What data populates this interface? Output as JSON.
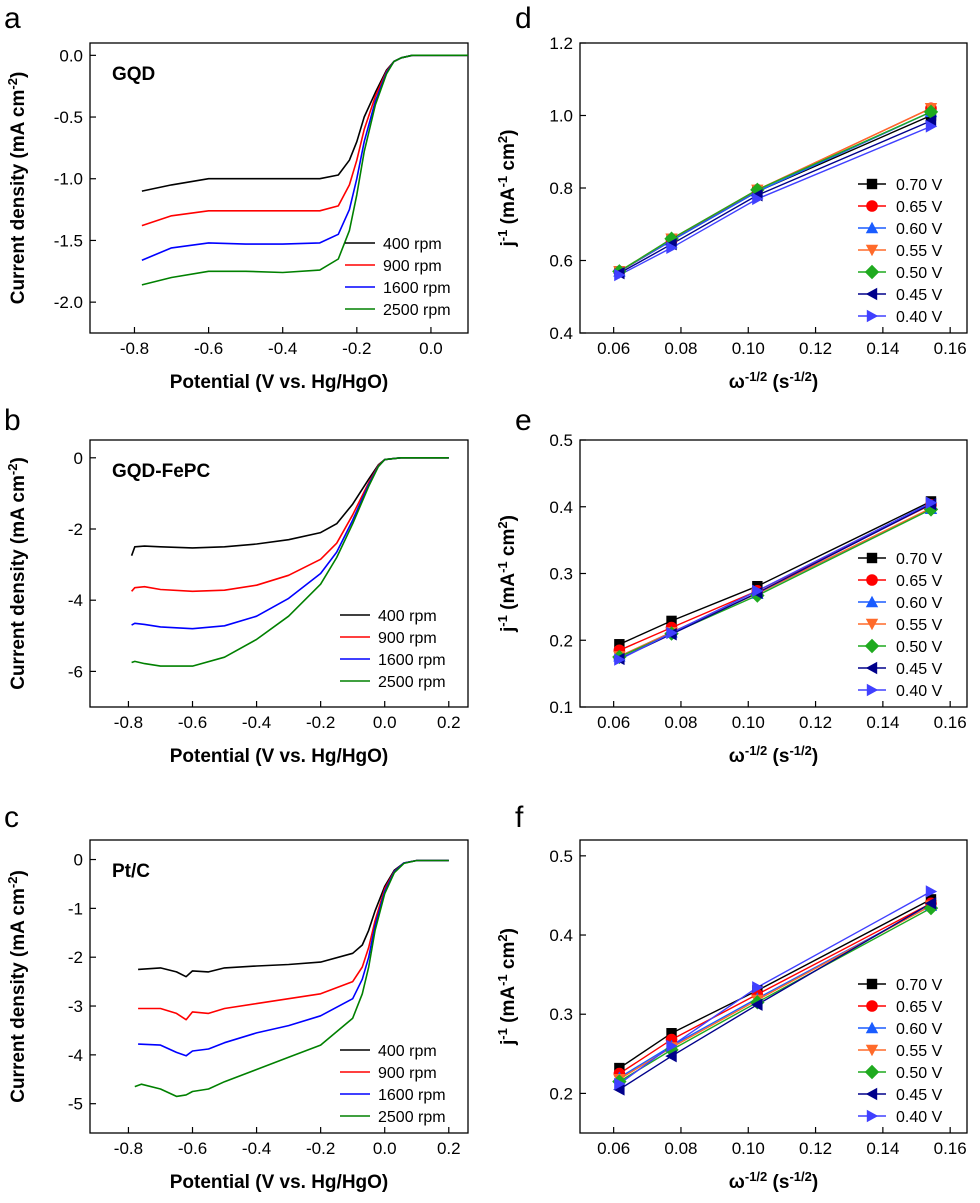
{
  "colors": {
    "rpm_400": "#000000",
    "rpm_900": "#ff0000",
    "rpm_1600": "#0000ff",
    "rpm_2500": "#008000",
    "v070": "#000000",
    "v065": "#ff0000",
    "v060": "#1a5cff",
    "v055": "#ff6a2a",
    "v050": "#1faa1f",
    "v045": "#00008b",
    "v040": "#4040ff"
  },
  "chart_data": [
    {
      "panel": "a",
      "type": "line",
      "inset_label": "GQD",
      "xlabel": "Potential (V vs. Hg/HgO)",
      "ylabel": "Current density (mA cm-2)",
      "xlim": [
        -0.92,
        0.1
      ],
      "ylim": [
        -2.25,
        0.1
      ],
      "xticks": [
        -0.8,
        -0.6,
        -0.4,
        -0.2,
        0.0
      ],
      "xtick_labels": [
        "-0.8",
        "-0.6",
        "-0.4",
        "-0.2",
        "0.0"
      ],
      "yticks": [
        0.0,
        -0.5,
        -1.0,
        -1.5,
        -2.0
      ],
      "ytick_labels": [
        "0.0",
        "-0.5",
        "-1.0",
        "-1.5",
        "-2.0"
      ],
      "legend_position": "bottom-right",
      "series": [
        {
          "name": "400 rpm",
          "color_key": "rpm_400",
          "x": [
            -0.78,
            -0.7,
            -0.6,
            -0.5,
            -0.4,
            -0.3,
            -0.25,
            -0.22,
            -0.2,
            -0.18,
            -0.15,
            -0.12,
            -0.1,
            -0.08,
            -0.05,
            0.0,
            0.1
          ],
          "y": [
            -1.1,
            -1.05,
            -1.0,
            -1.0,
            -1.0,
            -1.0,
            -0.97,
            -0.85,
            -0.7,
            -0.5,
            -0.3,
            -0.12,
            -0.05,
            -0.02,
            0,
            0,
            0
          ]
        },
        {
          "name": "900 rpm",
          "color_key": "rpm_900",
          "x": [
            -0.78,
            -0.7,
            -0.6,
            -0.5,
            -0.4,
            -0.3,
            -0.25,
            -0.22,
            -0.2,
            -0.18,
            -0.15,
            -0.12,
            -0.1,
            -0.08,
            -0.05,
            0.0,
            0.1
          ],
          "y": [
            -1.38,
            -1.3,
            -1.26,
            -1.26,
            -1.26,
            -1.26,
            -1.22,
            -1.05,
            -0.85,
            -0.6,
            -0.33,
            -0.13,
            -0.05,
            -0.02,
            0,
            0,
            0
          ]
        },
        {
          "name": "1600 rpm",
          "color_key": "rpm_1600",
          "x": [
            -0.78,
            -0.7,
            -0.6,
            -0.5,
            -0.4,
            -0.3,
            -0.25,
            -0.22,
            -0.2,
            -0.18,
            -0.15,
            -0.12,
            -0.1,
            -0.08,
            -0.05,
            0.0,
            0.1
          ],
          "y": [
            -1.66,
            -1.56,
            -1.52,
            -1.53,
            -1.53,
            -1.52,
            -1.45,
            -1.25,
            -1.0,
            -0.7,
            -0.37,
            -0.14,
            -0.05,
            -0.02,
            0,
            0,
            0
          ]
        },
        {
          "name": "2500 rpm",
          "color_key": "rpm_2500",
          "x": [
            -0.78,
            -0.7,
            -0.6,
            -0.5,
            -0.4,
            -0.3,
            -0.25,
            -0.22,
            -0.2,
            -0.18,
            -0.15,
            -0.12,
            -0.1,
            -0.08,
            -0.05,
            0.0,
            0.1
          ],
          "y": [
            -1.86,
            -1.8,
            -1.75,
            -1.75,
            -1.76,
            -1.74,
            -1.65,
            -1.42,
            -1.13,
            -0.78,
            -0.4,
            -0.15,
            -0.05,
            -0.02,
            0,
            0,
            0
          ]
        }
      ]
    },
    {
      "panel": "b",
      "type": "line",
      "inset_label": "GQD-FePC",
      "xlabel": "Potential (V vs. Hg/HgO)",
      "ylabel": "Current density (mA cm-2)",
      "xlim": [
        -0.92,
        0.26
      ],
      "ylim": [
        -7.0,
        0.5
      ],
      "xticks": [
        -0.8,
        -0.6,
        -0.4,
        -0.2,
        0.0,
        0.2
      ],
      "xtick_labels": [
        "-0.8",
        "-0.6",
        "-0.4",
        "-0.2",
        "0.0",
        "0.2"
      ],
      "yticks": [
        0,
        -2,
        -4,
        -6
      ],
      "ytick_labels": [
        "0",
        "-2",
        "-4",
        "-6"
      ],
      "legend_position": "bottom-right",
      "series": [
        {
          "name": "400 rpm",
          "color_key": "rpm_400",
          "x": [
            -0.79,
            -0.78,
            -0.75,
            -0.7,
            -0.6,
            -0.5,
            -0.4,
            -0.3,
            -0.2,
            -0.15,
            -0.1,
            -0.05,
            -0.02,
            0.0,
            0.05,
            0.2
          ],
          "y": [
            -2.75,
            -2.5,
            -2.48,
            -2.5,
            -2.53,
            -2.5,
            -2.42,
            -2.3,
            -2.1,
            -1.85,
            -1.3,
            -0.6,
            -0.2,
            -0.05,
            0,
            0
          ]
        },
        {
          "name": "900 rpm",
          "color_key": "rpm_900",
          "x": [
            -0.79,
            -0.78,
            -0.75,
            -0.7,
            -0.6,
            -0.5,
            -0.4,
            -0.3,
            -0.2,
            -0.15,
            -0.1,
            -0.05,
            -0.02,
            0.0,
            0.05,
            0.2
          ],
          "y": [
            -3.75,
            -3.65,
            -3.62,
            -3.7,
            -3.75,
            -3.72,
            -3.58,
            -3.3,
            -2.85,
            -2.4,
            -1.6,
            -0.7,
            -0.22,
            -0.05,
            0,
            0
          ]
        },
        {
          "name": "1600 rpm",
          "color_key": "rpm_1600",
          "x": [
            -0.79,
            -0.78,
            -0.75,
            -0.7,
            -0.6,
            -0.5,
            -0.4,
            -0.3,
            -0.2,
            -0.15,
            -0.1,
            -0.05,
            -0.02,
            0.0,
            0.05,
            0.2
          ],
          "y": [
            -4.7,
            -4.65,
            -4.68,
            -4.75,
            -4.8,
            -4.72,
            -4.45,
            -3.95,
            -3.25,
            -2.65,
            -1.75,
            -0.75,
            -0.24,
            -0.05,
            0,
            0
          ]
        },
        {
          "name": "2500 rpm",
          "color_key": "rpm_2500",
          "x": [
            -0.79,
            -0.78,
            -0.75,
            -0.7,
            -0.6,
            -0.5,
            -0.4,
            -0.3,
            -0.2,
            -0.15,
            -0.1,
            -0.05,
            -0.02,
            0.0,
            0.05,
            0.2
          ],
          "y": [
            -5.75,
            -5.72,
            -5.78,
            -5.85,
            -5.85,
            -5.6,
            -5.1,
            -4.45,
            -3.55,
            -2.8,
            -1.85,
            -0.8,
            -0.25,
            -0.05,
            0,
            0
          ]
        }
      ]
    },
    {
      "panel": "c",
      "type": "line",
      "inset_label": "Pt/C",
      "xlabel": "Potential (V vs. Hg/HgO)",
      "ylabel": "Current density (mA cm-2)",
      "xlim": [
        -0.92,
        0.26
      ],
      "ylim": [
        -5.6,
        0.4
      ],
      "xticks": [
        -0.8,
        -0.6,
        -0.4,
        -0.2,
        0.0,
        0.2
      ],
      "xtick_labels": [
        "-0.8",
        "-0.6",
        "-0.4",
        "-0.2",
        "0.0",
        "0.2"
      ],
      "yticks": [
        0,
        -1,
        -2,
        -3,
        -4,
        -5
      ],
      "ytick_labels": [
        "0",
        "-1",
        "-2",
        "-3",
        "-4",
        "-5"
      ],
      "legend_position": "bottom-right",
      "series": [
        {
          "name": "400 rpm",
          "color_key": "rpm_400",
          "x": [
            -0.77,
            -0.7,
            -0.65,
            -0.62,
            -0.6,
            -0.55,
            -0.5,
            -0.4,
            -0.3,
            -0.2,
            -0.1,
            -0.07,
            -0.05,
            -0.03,
            0.0,
            0.03,
            0.06,
            0.1,
            0.2
          ],
          "y": [
            -2.25,
            -2.22,
            -2.3,
            -2.4,
            -2.28,
            -2.3,
            -2.22,
            -2.18,
            -2.15,
            -2.1,
            -1.92,
            -1.75,
            -1.45,
            -1.05,
            -0.55,
            -0.22,
            -0.07,
            -0.02,
            -0.02
          ]
        },
        {
          "name": "900 rpm",
          "color_key": "rpm_900",
          "x": [
            -0.77,
            -0.7,
            -0.65,
            -0.62,
            -0.6,
            -0.55,
            -0.5,
            -0.4,
            -0.3,
            -0.2,
            -0.1,
            -0.07,
            -0.05,
            -0.03,
            0.0,
            0.03,
            0.06,
            0.1,
            0.2
          ],
          "y": [
            -3.05,
            -3.05,
            -3.15,
            -3.28,
            -3.12,
            -3.15,
            -3.05,
            -2.95,
            -2.85,
            -2.75,
            -2.5,
            -2.2,
            -1.8,
            -1.25,
            -0.6,
            -0.24,
            -0.07,
            -0.02,
            -0.02
          ]
        },
        {
          "name": "1600 rpm",
          "color_key": "rpm_1600",
          "x": [
            -0.77,
            -0.7,
            -0.65,
            -0.62,
            -0.6,
            -0.55,
            -0.5,
            -0.4,
            -0.3,
            -0.2,
            -0.1,
            -0.07,
            -0.05,
            -0.03,
            0.0,
            0.03,
            0.06,
            0.1,
            0.2
          ],
          "y": [
            -3.78,
            -3.8,
            -3.95,
            -4.02,
            -3.92,
            -3.88,
            -3.75,
            -3.55,
            -3.4,
            -3.2,
            -2.85,
            -2.45,
            -2.0,
            -1.35,
            -0.65,
            -0.25,
            -0.07,
            -0.02,
            -0.02
          ]
        },
        {
          "name": "2500 rpm",
          "color_key": "rpm_2500",
          "x": [
            -0.78,
            -0.76,
            -0.7,
            -0.65,
            -0.62,
            -0.6,
            -0.55,
            -0.5,
            -0.4,
            -0.3,
            -0.2,
            -0.1,
            -0.07,
            -0.05,
            -0.03,
            0.0,
            0.03,
            0.06,
            0.1,
            0.2
          ],
          "y": [
            -4.65,
            -4.6,
            -4.7,
            -4.85,
            -4.82,
            -4.75,
            -4.7,
            -4.55,
            -4.3,
            -4.05,
            -3.8,
            -3.25,
            -2.75,
            -2.2,
            -1.45,
            -0.7,
            -0.27,
            -0.08,
            -0.02,
            -0.02
          ]
        }
      ]
    },
    {
      "panel": "d",
      "type": "line",
      "xlabel": "ω-1/2 (s-1/2)",
      "ylabel": "j-1 (mA-1 cm2)",
      "xlim": [
        0.05,
        0.165
      ],
      "ylim": [
        0.4,
        1.2
      ],
      "xticks": [
        0.06,
        0.08,
        0.1,
        0.12,
        0.14,
        0.16
      ],
      "xtick_labels": [
        "0.06",
        "0.08",
        "0.10",
        "0.12",
        "0.14",
        "0.16"
      ],
      "yticks": [
        0.4,
        0.6,
        0.8,
        1.0,
        1.2
      ],
      "ytick_labels": [
        "0.4",
        "0.6",
        "0.8",
        "1.0",
        "1.2"
      ],
      "legend_position": "right",
      "x": [
        0.0617,
        0.0772,
        0.1027,
        0.1543
      ],
      "series": [
        {
          "name": "0.70 V",
          "marker": "square",
          "color_key": "v070",
          "values": [
            0.57,
            0.655,
            0.79,
            1.0
          ]
        },
        {
          "name": "0.65 V",
          "marker": "circle",
          "color_key": "v065",
          "values": [
            0.57,
            0.655,
            0.795,
            1.02
          ]
        },
        {
          "name": "0.60 V",
          "marker": "triangle-up",
          "color_key": "v060",
          "values": [
            0.57,
            0.655,
            0.79,
            1.01
          ]
        },
        {
          "name": "0.55 V",
          "marker": "triangle-down",
          "color_key": "v055",
          "values": [
            0.57,
            0.66,
            0.795,
            1.02
          ]
        },
        {
          "name": "0.50 V",
          "marker": "diamond",
          "color_key": "v050",
          "values": [
            0.57,
            0.66,
            0.795,
            1.01
          ]
        },
        {
          "name": "0.45 V",
          "marker": "triangle-left",
          "color_key": "v045",
          "values": [
            0.565,
            0.645,
            0.78,
            0.985
          ]
        },
        {
          "name": "0.40 V",
          "marker": "triangle-right",
          "color_key": "v040",
          "values": [
            0.56,
            0.635,
            0.77,
            0.97
          ]
        }
      ]
    },
    {
      "panel": "e",
      "type": "line",
      "xlabel": "ω-1/2 (s-1/2)",
      "ylabel": "j-1 (mA-1 cm2)",
      "xlim": [
        0.05,
        0.165
      ],
      "ylim": [
        0.1,
        0.5
      ],
      "xticks": [
        0.06,
        0.08,
        0.1,
        0.12,
        0.14,
        0.16
      ],
      "xtick_labels": [
        "0.06",
        "0.08",
        "0.10",
        "0.12",
        "0.14",
        "0.16"
      ],
      "yticks": [
        0.1,
        0.2,
        0.3,
        0.4,
        0.5
      ],
      "ytick_labels": [
        "0.1",
        "0.2",
        "0.3",
        "0.4",
        "0.5"
      ],
      "legend_position": "right",
      "x": [
        0.0617,
        0.0772,
        0.1027,
        0.1543
      ],
      "series": [
        {
          "name": "0.70 V",
          "marker": "square",
          "color_key": "v070",
          "values": [
            0.194,
            0.229,
            0.281,
            0.408
          ]
        },
        {
          "name": "0.65 V",
          "marker": "circle",
          "color_key": "v065",
          "values": [
            0.185,
            0.219,
            0.274,
            0.403
          ]
        },
        {
          "name": "0.60 V",
          "marker": "triangle-up",
          "color_key": "v060",
          "values": [
            0.176,
            0.212,
            0.27,
            0.397
          ]
        },
        {
          "name": "0.55 V",
          "marker": "triangle-down",
          "color_key": "v055",
          "values": [
            0.176,
            0.212,
            0.27,
            0.398
          ]
        },
        {
          "name": "0.50 V",
          "marker": "diamond",
          "color_key": "v050",
          "values": [
            0.175,
            0.21,
            0.267,
            0.396
          ]
        },
        {
          "name": "0.45 V",
          "marker": "triangle-left",
          "color_key": "v045",
          "values": [
            0.172,
            0.209,
            0.271,
            0.404
          ]
        },
        {
          "name": "0.40 V",
          "marker": "triangle-right",
          "color_key": "v040",
          "values": [
            0.171,
            0.211,
            0.274,
            0.406
          ]
        }
      ]
    },
    {
      "panel": "f",
      "type": "line",
      "xlabel": "ω-1/2 (s-1/2)",
      "ylabel": "j-1 (mA-1 cm2)",
      "xlim": [
        0.05,
        0.165
      ],
      "ylim": [
        0.15,
        0.52
      ],
      "xticks": [
        0.06,
        0.08,
        0.1,
        0.12,
        0.14,
        0.16
      ],
      "xtick_labels": [
        "0.06",
        "0.08",
        "0.10",
        "0.12",
        "0.14",
        "0.16"
      ],
      "yticks": [
        0.2,
        0.3,
        0.4,
        0.5
      ],
      "ytick_labels": [
        "0.2",
        "0.3",
        "0.4",
        "0.5"
      ],
      "legend_position": "bottom-right",
      "x": [
        0.0617,
        0.0772,
        0.1027,
        0.1543
      ],
      "series": [
        {
          "name": "0.70 V",
          "marker": "square",
          "color_key": "v070",
          "values": [
            0.232,
            0.276,
            0.33,
            0.445
          ]
        },
        {
          "name": "0.65 V",
          "marker": "circle",
          "color_key": "v065",
          "values": [
            0.225,
            0.268,
            0.325,
            0.44
          ]
        },
        {
          "name": "0.60 V",
          "marker": "triangle-up",
          "color_key": "v060",
          "values": [
            0.22,
            0.26,
            0.32,
            0.437
          ]
        },
        {
          "name": "0.55 V",
          "marker": "triangle-down",
          "color_key": "v055",
          "values": [
            0.218,
            0.258,
            0.318,
            0.437
          ]
        },
        {
          "name": "0.50 V",
          "marker": "diamond",
          "color_key": "v050",
          "values": [
            0.215,
            0.255,
            0.315,
            0.434
          ]
        },
        {
          "name": "0.45 V",
          "marker": "triangle-left",
          "color_key": "v045",
          "values": [
            0.205,
            0.247,
            0.312,
            0.44
          ]
        },
        {
          "name": "0.40 V",
          "marker": "triangle-right",
          "color_key": "v040",
          "values": [
            0.212,
            0.26,
            0.334,
            0.455
          ]
        }
      ]
    }
  ]
}
